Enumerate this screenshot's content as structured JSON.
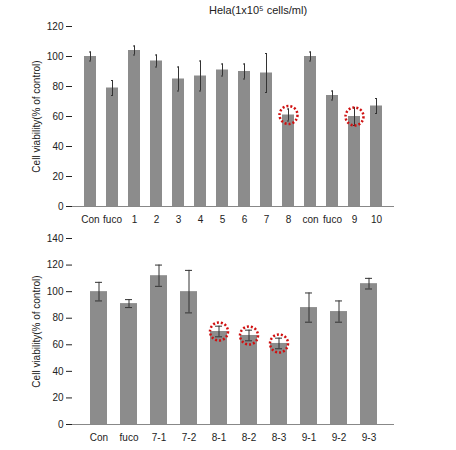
{
  "chart_data": [
    {
      "type": "bar",
      "title": "Hela(1x10⁵ cells/ml)",
      "y_label": "Cell viability(% of control)",
      "categories": [
        "Con",
        "fuco",
        "1",
        "2",
        "3",
        "4",
        "5",
        "6",
        "7",
        "8",
        "con",
        "fuco",
        "9",
        "10"
      ],
      "values": [
        100,
        79,
        104,
        97,
        85,
        87,
        91,
        90,
        89,
        61,
        100,
        74,
        60,
        67
      ],
      "error": [
        3,
        5,
        3,
        4,
        8,
        10,
        4,
        5,
        13,
        4,
        3,
        3,
        6,
        5
      ],
      "highlighted": [
        false,
        false,
        false,
        false,
        false,
        false,
        false,
        false,
        false,
        true,
        false,
        false,
        true,
        false
      ],
      "color": "#8c8c8c",
      "ylim": [
        0,
        120
      ],
      "yticks": [
        0,
        20,
        40,
        60,
        80,
        100,
        120
      ]
    },
    {
      "type": "bar",
      "y_label": "Cell viability(% of control)",
      "categories": [
        "Con",
        "fuco",
        "7-1",
        "7-2",
        "8-1",
        "8-2",
        "8-3",
        "9-1",
        "9-2",
        "9-3"
      ],
      "values": [
        100,
        91,
        112,
        100,
        70,
        67,
        61,
        88,
        85,
        106
      ],
      "error": [
        7,
        3,
        8,
        16,
        4,
        4,
        4,
        11,
        8,
        4
      ],
      "highlighted": [
        false,
        false,
        false,
        false,
        true,
        true,
        true,
        false,
        false,
        false
      ],
      "color": "#8c8c8c",
      "ylim": [
        0,
        140
      ],
      "yticks": [
        0,
        20,
        40,
        60,
        80,
        100,
        120,
        140
      ]
    }
  ]
}
